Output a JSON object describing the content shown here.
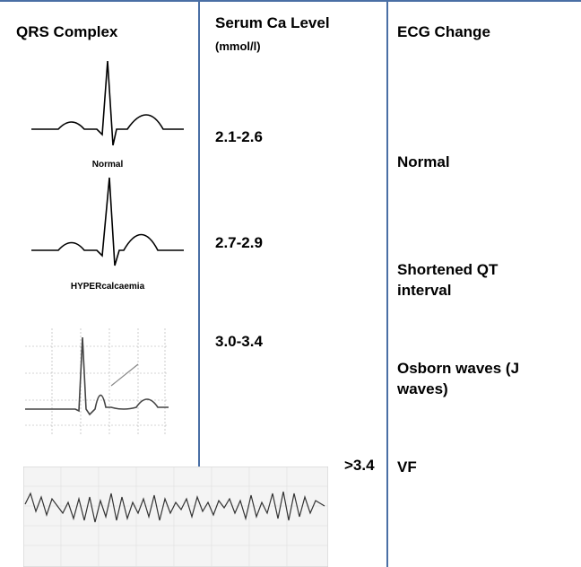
{
  "table": {
    "headers": [
      "QRS Complex",
      "Serum Ca Level",
      "ECG Change"
    ],
    "header_unit": "(mmol/l)",
    "rows": [
      {
        "caption": "Normal",
        "level": "2.1-2.6",
        "change": "Normal"
      },
      {
        "caption": "HYPERcalcaemia",
        "level": "2.7-2.9",
        "change": "Shortened QT interval"
      },
      {
        "level": "3.0-3.4",
        "change": "Osborn waves (J waves)"
      },
      {
        "level": ">3.4",
        "change": "VF"
      }
    ]
  }
}
